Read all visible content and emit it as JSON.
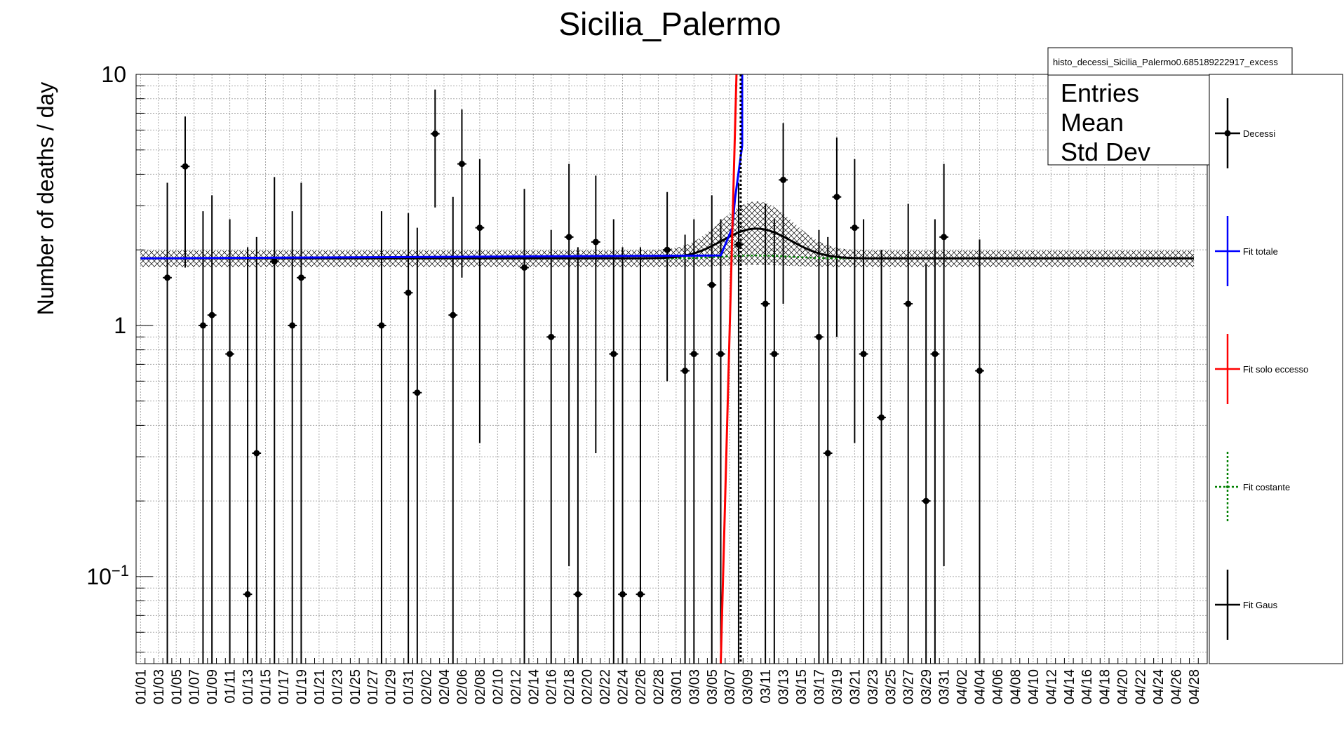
{
  "chart_data": {
    "type": "scatter",
    "title": "Sicilia_Palermo",
    "ylabel": "Number of deaths / day",
    "xlabel": "",
    "yscale": "log",
    "ylim": [
      0.045,
      10
    ],
    "grid": true,
    "ytick_labels": [
      {
        "value": 10,
        "label": "10",
        "sup": ""
      },
      {
        "value": 1,
        "label": "1",
        "sup": ""
      },
      {
        "value": 0.1,
        "label": "10",
        "sup": "−1"
      }
    ],
    "x_tick_labels": [
      "01/01",
      "01/03",
      "01/05",
      "01/07",
      "01/09",
      "01/11",
      "01/13",
      "01/15",
      "01/17",
      "01/19",
      "01/21",
      "01/23",
      "01/25",
      "01/27",
      "01/29",
      "01/31",
      "02/02",
      "02/04",
      "02/06",
      "02/08",
      "02/10",
      "02/12",
      "02/14",
      "02/16",
      "02/18",
      "02/20",
      "02/22",
      "02/24",
      "02/26",
      "02/28",
      "03/01",
      "03/03",
      "03/05",
      "03/07",
      "03/09",
      "03/11",
      "03/13",
      "03/15",
      "03/17",
      "03/19",
      "03/21",
      "03/23",
      "03/25",
      "03/27",
      "03/29",
      "03/31",
      "04/02",
      "04/04",
      "04/06",
      "04/08",
      "04/10",
      "04/12",
      "04/14",
      "04/16",
      "04/18",
      "04/20",
      "04/22",
      "04/24",
      "04/26",
      "04/28"
    ],
    "points": [
      {
        "date": "01/04",
        "y": 1.55,
        "lo": 0.04,
        "hi": 3.7
      },
      {
        "date": "01/06",
        "y": 4.3,
        "lo": 1.7,
        "hi": 6.8
      },
      {
        "date": "01/08",
        "y": 1.0,
        "lo": 0.04,
        "hi": 2.85
      },
      {
        "date": "01/09",
        "y": 1.1,
        "lo": 0.04,
        "hi": 3.3
      },
      {
        "date": "01/11",
        "y": 0.77,
        "lo": 0.04,
        "hi": 2.65
      },
      {
        "date": "01/13",
        "y": 0.085,
        "lo": 0.04,
        "hi": 2.05
      },
      {
        "date": "01/14",
        "y": 0.31,
        "lo": 0.04,
        "hi": 2.25
      },
      {
        "date": "01/16",
        "y": 1.8,
        "lo": 0.04,
        "hi": 3.9
      },
      {
        "date": "01/18",
        "y": 1.0,
        "lo": 0.04,
        "hi": 2.85
      },
      {
        "date": "01/19",
        "y": 1.55,
        "lo": 0.04,
        "hi": 3.7
      },
      {
        "date": "01/28",
        "y": 1.0,
        "lo": 0.04,
        "hi": 2.85
      },
      {
        "date": "01/31",
        "y": 1.35,
        "lo": 0.04,
        "hi": 2.8
      },
      {
        "date": "02/01",
        "y": 0.54,
        "lo": 0.04,
        "hi": 2.45
      },
      {
        "date": "02/03",
        "y": 5.8,
        "lo": 2.95,
        "hi": 8.7
      },
      {
        "date": "02/05",
        "y": 1.1,
        "lo": 0.04,
        "hi": 3.25
      },
      {
        "date": "02/06",
        "y": 4.4,
        "lo": 1.55,
        "hi": 7.25
      },
      {
        "date": "02/08",
        "y": 2.45,
        "lo": 0.34,
        "hi": 4.6
      },
      {
        "date": "02/13",
        "y": 1.7,
        "lo": 0.04,
        "hi": 3.5
      },
      {
        "date": "02/16",
        "y": 0.9,
        "lo": 0.04,
        "hi": 2.4
      },
      {
        "date": "02/18",
        "y": 2.25,
        "lo": 0.11,
        "hi": 4.4
      },
      {
        "date": "02/19",
        "y": 0.085,
        "lo": 0.04,
        "hi": 2.05
      },
      {
        "date": "02/21",
        "y": 2.15,
        "lo": 0.31,
        "hi": 3.95
      },
      {
        "date": "02/23",
        "y": 0.77,
        "lo": 0.04,
        "hi": 2.65
      },
      {
        "date": "02/24",
        "y": 0.085,
        "lo": 0.04,
        "hi": 2.05
      },
      {
        "date": "02/26",
        "y": 0.085,
        "lo": 0.04,
        "hi": 2.05
      },
      {
        "date": "02/29",
        "y": 2.0,
        "lo": 0.6,
        "hi": 3.4
      },
      {
        "date": "03/02",
        "y": 0.66,
        "lo": 0.04,
        "hi": 2.3
      },
      {
        "date": "03/03",
        "y": 0.77,
        "lo": 0.04,
        "hi": 2.65
      },
      {
        "date": "03/05",
        "y": 1.45,
        "lo": 0.04,
        "hi": 3.3
      },
      {
        "date": "03/06",
        "y": 0.77,
        "lo": 0.04,
        "hi": 2.65
      },
      {
        "date": "03/08",
        "y": 2.1,
        "lo": 0.04,
        "hi": 3.7
      },
      {
        "date": "03/11",
        "y": 1.22,
        "lo": 0.04,
        "hi": 3.05
      },
      {
        "date": "03/12",
        "y": 0.77,
        "lo": 0.04,
        "hi": 2.65
      },
      {
        "date": "03/13",
        "y": 3.8,
        "lo": 1.22,
        "hi": 6.4
      },
      {
        "date": "03/17",
        "y": 0.9,
        "lo": 0.04,
        "hi": 2.4
      },
      {
        "date": "03/18",
        "y": 0.31,
        "lo": 0.04,
        "hi": 2.25
      },
      {
        "date": "03/19",
        "y": 3.25,
        "lo": 0.9,
        "hi": 5.6
      },
      {
        "date": "03/21",
        "y": 2.45,
        "lo": 0.34,
        "hi": 4.6
      },
      {
        "date": "03/22",
        "y": 0.77,
        "lo": 0.04,
        "hi": 2.65
      },
      {
        "date": "03/24",
        "y": 0.43,
        "lo": 0.04,
        "hi": 2.0
      },
      {
        "date": "03/27",
        "y": 1.22,
        "lo": 0.04,
        "hi": 3.05
      },
      {
        "date": "03/29",
        "y": 0.2,
        "lo": 0.04,
        "hi": 1.75
      },
      {
        "date": "03/30",
        "y": 0.77,
        "lo": 0.04,
        "hi": 2.65
      },
      {
        "date": "03/31",
        "y": 2.25,
        "lo": 0.11,
        "hi": 4.4
      },
      {
        "date": "04/04",
        "y": 0.66,
        "lo": 0.04,
        "hi": 2.2
      }
    ],
    "fits": {
      "constant": 1.85,
      "band_half_width": 0.14,
      "gaus": {
        "amplitude": 0.58,
        "mean_date": "03/10",
        "sigma_days": 3.6
      },
      "gaus_band_extra": 0.55,
      "totale_pts": [
        [
          "01/01",
          1.85
        ],
        [
          "03/06",
          1.9
        ],
        [
          "03/07",
          2.45
        ],
        [
          "03/07",
          3.2
        ],
        [
          "03/08",
          5.2
        ],
        [
          "03/08",
          10
        ]
      ],
      "eccesso_pts": [
        [
          "03/06",
          0.045
        ],
        [
          "03/08",
          10
        ]
      ],
      "marker_date": "03/08"
    },
    "stats_box": {
      "name": "histo_decessi_Sicilia_Palermo0.685189222917_excess",
      "rows": [
        "Entries",
        "Mean",
        "Std Dev"
      ]
    },
    "legend_position": "right",
    "legend": [
      {
        "label": "Decessi",
        "color": "#000000",
        "style": "solid",
        "marker": true
      },
      {
        "label": "Fit totale",
        "color": "#0000ff",
        "style": "solid",
        "marker": false
      },
      {
        "label": "Fit solo eccesso",
        "color": "#ff0000",
        "style": "solid",
        "marker": false
      },
      {
        "label": "Fit costante",
        "color": "#008000",
        "style": "dotted",
        "marker": false
      },
      {
        "label": "Fit Gaus",
        "color": "#000000",
        "style": "solid",
        "marker": false
      }
    ]
  }
}
